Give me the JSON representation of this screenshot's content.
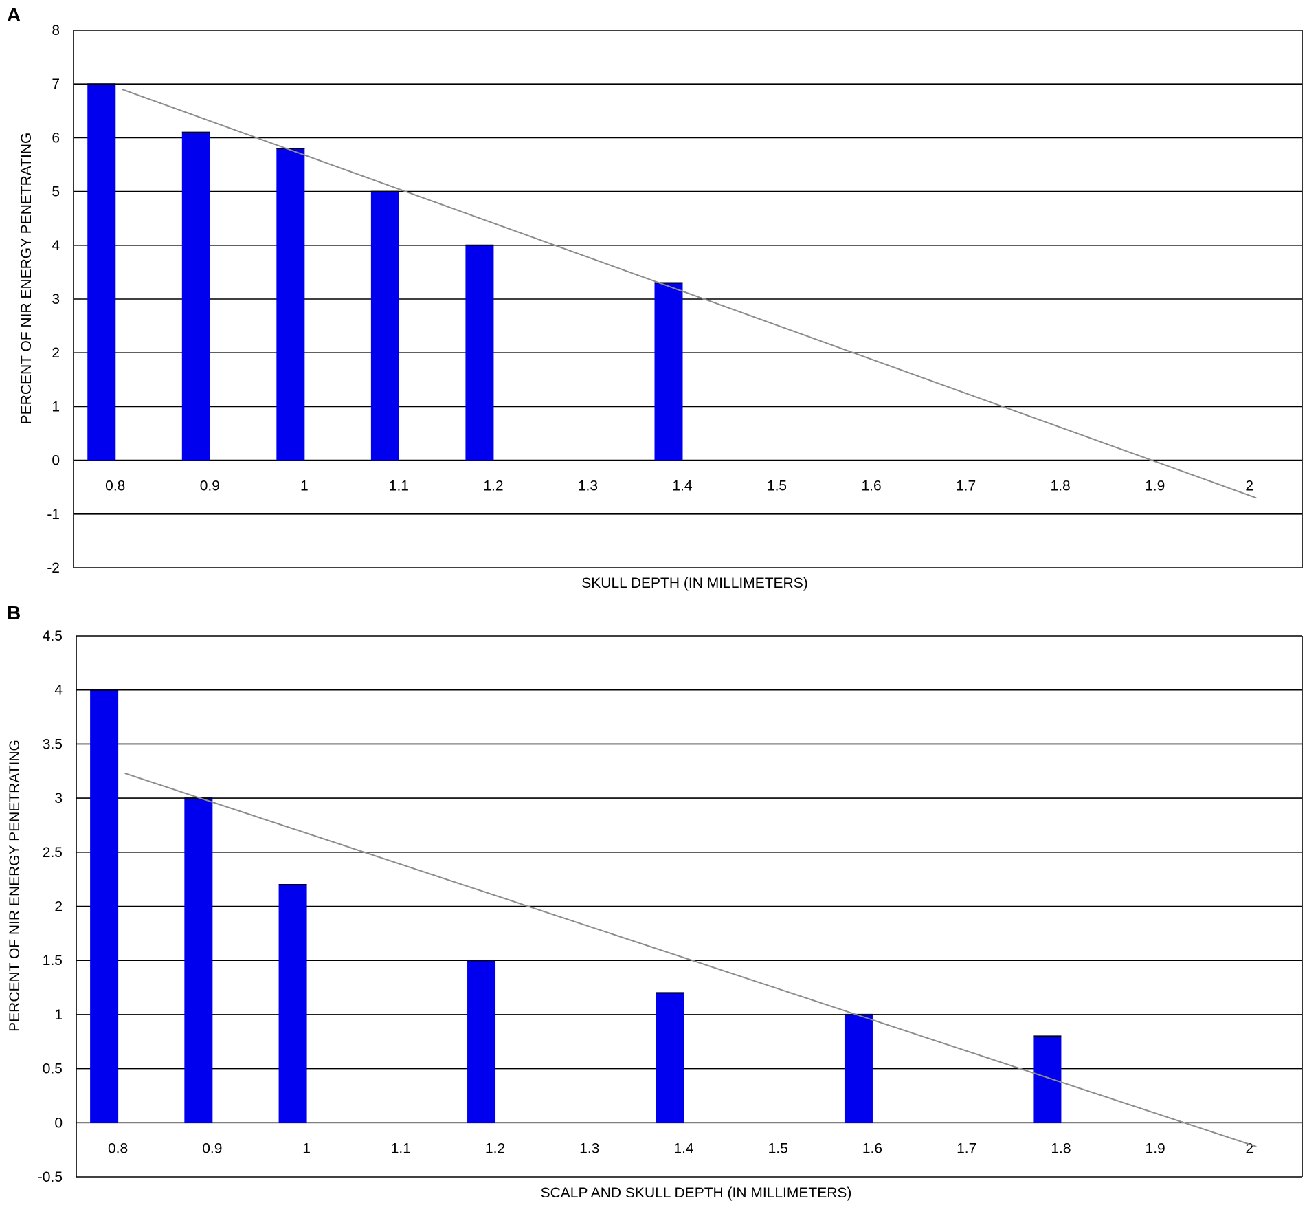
{
  "chart_data": [
    {
      "type": "bar",
      "panel_label": "A",
      "categories": [
        "0.8",
        "0.9",
        "1",
        "1.1",
        "1.2",
        "1.3",
        "1.4",
        "1.5",
        "1.6",
        "1.7",
        "1.8",
        "1.9",
        "2"
      ],
      "values": [
        7,
        6.1,
        5.8,
        5,
        4,
        null,
        3.3,
        null,
        null,
        null,
        null,
        null,
        null
      ],
      "ylim": [
        -2,
        8
      ],
      "yticks": [
        8,
        7,
        6,
        5,
        4,
        3,
        2,
        1,
        0,
        -1,
        -2
      ],
      "xlabel": "SKULL DEPTH  (IN MILLIMETERS)",
      "ylabel": "PERCENT OF NIR ENERGY PENETRATING",
      "trendline": {
        "type": "linear",
        "start": {
          "x": "0.8",
          "y": 6.9
        },
        "end": {
          "x": "2",
          "y": -0.7
        }
      },
      "bar_color": "#0000ee",
      "trendline_color": "#8c8c8c",
      "grid": true
    },
    {
      "type": "bar",
      "panel_label": "B",
      "categories": [
        "0.8",
        "0.9",
        "1",
        "1.1",
        "1.2",
        "1.3",
        "1.4",
        "1.5",
        "1.6",
        "1.7",
        "1.8",
        "1.9",
        "2"
      ],
      "values": [
        4,
        3,
        2.2,
        null,
        1.5,
        null,
        1.2,
        null,
        1,
        null,
        0.8,
        null,
        null
      ],
      "ylim": [
        -0.5,
        4.5
      ],
      "yticks": [
        4.5,
        4,
        3.5,
        3,
        2.5,
        2,
        1.5,
        1,
        0.5,
        0,
        -0.5
      ],
      "xlabel": "SCALP AND SKULL DEPTH  (IN MILLIMETERS)",
      "ylabel": "PERCENT OF NIR ENERGY PENETRATING",
      "trendline": {
        "type": "linear",
        "start": {
          "x": "0.8",
          "y": 3.23
        },
        "end": {
          "x": "2",
          "y": -0.22
        }
      },
      "bar_color": "#0000ee",
      "trendline_color": "#8c8c8c",
      "grid": true
    }
  ]
}
